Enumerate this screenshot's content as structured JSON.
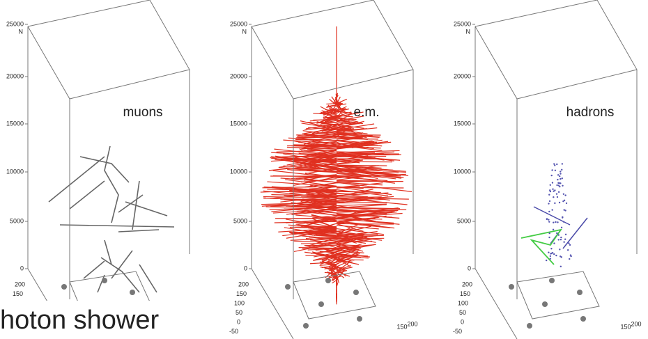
{
  "panels": [
    {
      "label": "muons",
      "axis_label": "N",
      "z_ticks": [
        25000,
        20000,
        15000,
        10000,
        5000,
        0
      ],
      "y_ticks": [
        200,
        150
      ]
    },
    {
      "label": "e.m.",
      "axis_label": "N",
      "z_ticks": [
        25000,
        20000,
        15000,
        10000,
        5000,
        0
      ],
      "y_ticks": [
        200,
        150,
        100,
        50,
        0,
        -50
      ],
      "x_ticks": [
        150,
        200
      ]
    },
    {
      "label": "hadrons",
      "axis_label": "N",
      "z_ticks": [
        25000,
        20000,
        15000,
        10000,
        5000,
        0
      ],
      "y_ticks": [
        200,
        150,
        100,
        50,
        0,
        -50
      ],
      "x_ticks": [
        150,
        200
      ]
    }
  ],
  "caption": "hoton shower"
}
